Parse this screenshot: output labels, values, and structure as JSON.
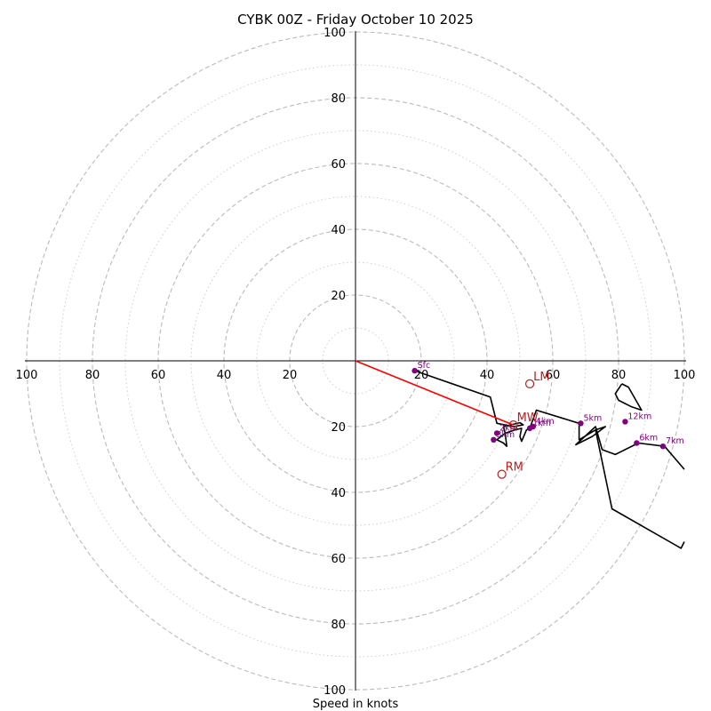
{
  "chart_data": {
    "type": "hodograph",
    "title": "CYBK 00Z - Friday October 10 2025",
    "xlabel": "Speed in knots",
    "range_knots": 100,
    "ring_step_knots": 10,
    "tick_labels": {
      "left": [
        "100",
        "80",
        "60",
        "40",
        "20"
      ],
      "right": [
        "20",
        "40",
        "60",
        "80",
        "100"
      ],
      "top": [
        "20",
        "40",
        "60",
        "80",
        "100"
      ],
      "bottom": [
        "20",
        "40",
        "60",
        "80",
        "100"
      ]
    },
    "tick_values": [
      20,
      40,
      60,
      80,
      100
    ],
    "hodograph_trace": [
      [
        18,
        -3
      ],
      [
        41,
        -11
      ],
      [
        43,
        -19
      ],
      [
        48,
        -20
      ],
      [
        51,
        -19.5
      ],
      [
        50,
        -18.8
      ],
      [
        45,
        -20
      ],
      [
        45.5,
        -22
      ],
      [
        43,
        -24
      ],
      [
        45,
        -25
      ],
      [
        46,
        -26
      ],
      [
        45.5,
        -22
      ],
      [
        48.5,
        -21
      ],
      [
        50.5,
        -20.5
      ],
      [
        50,
        -23
      ],
      [
        50.5,
        -24.5
      ],
      [
        52,
        -21
      ],
      [
        53,
        -20.5
      ],
      [
        55,
        -15
      ],
      [
        68,
        -19
      ],
      [
        68,
        -24
      ],
      [
        73,
        -21
      ],
      [
        76,
        -20
      ],
      [
        72,
        -23
      ],
      [
        67,
        -25.5
      ],
      [
        73,
        -20
      ],
      [
        75,
        -27
      ],
      [
        79,
        -28.5
      ],
      [
        86,
        -25
      ],
      [
        94,
        -26
      ],
      [
        100,
        -33
      ]
    ],
    "trace_upper_segment": [
      [
        81,
        -7
      ],
      [
        83,
        -8
      ],
      [
        87,
        -15
      ],
      [
        84,
        -14
      ],
      [
        80,
        -12
      ],
      [
        79,
        -10
      ],
      [
        81,
        -7
      ]
    ],
    "trace_exit_segment": [
      [
        73,
        -21
      ],
      [
        78,
        -45
      ],
      [
        99,
        -57
      ],
      [
        100,
        -55
      ]
    ],
    "height_markers": [
      {
        "label": "Sfc",
        "u": 18,
        "v": -3
      },
      {
        "label": "1km",
        "u": 53,
        "v": -20.5
      },
      {
        "label": "2km",
        "u": 43,
        "v": -22
      },
      {
        "label": "3km",
        "u": 42,
        "v": -24
      },
      {
        "label": "4km",
        "u": 54,
        "v": -20
      },
      {
        "label": "5km",
        "u": 68.5,
        "v": -19
      },
      {
        "label": "6km",
        "u": 85.5,
        "v": -25
      },
      {
        "label": "7km",
        "u": 93.5,
        "v": -26
      },
      {
        "label": "12km",
        "u": 82,
        "v": -18.5
      }
    ],
    "storm_motions": [
      {
        "label": "LM",
        "u": 53,
        "v": -7
      },
      {
        "label": "MW",
        "u": 48,
        "v": -19.5
      },
      {
        "label": "RM",
        "u": 44.5,
        "v": -34.5
      }
    ],
    "mean_wind_vector": {
      "u": 48,
      "v": -19.5
    },
    "colors": {
      "trace": "#000000",
      "marker": "#800080",
      "storm_motion": "#b22222",
      "vector": "#ff0000",
      "grid": "#bbbbbb"
    }
  }
}
